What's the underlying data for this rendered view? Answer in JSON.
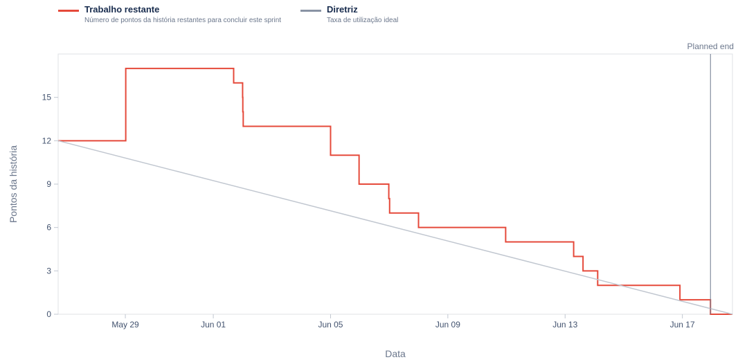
{
  "legend": [
    {
      "name": "Trabalho restante",
      "description": "Número de pontos da história restantes para concluir este sprint",
      "color": "#e5493a"
    },
    {
      "name": "Diretriz",
      "description": "Taxa de utilização ideal",
      "color": "#8993a4"
    }
  ],
  "chart_data": {
    "type": "line",
    "xlabel": "Data",
    "ylabel": "Pontos da história",
    "xlim": [
      "2021-05-26T17:00",
      "2021-06-18T17:00"
    ],
    "ylim": [
      0,
      18
    ],
    "y_ticks": [
      0,
      3,
      6,
      9,
      12,
      15
    ],
    "x_ticks": [
      {
        "date": "2021-05-29T00:00",
        "label": "May 29"
      },
      {
        "date": "2021-06-01T00:00",
        "label": "Jun 01"
      },
      {
        "date": "2021-06-05T00:00",
        "label": "Jun 05"
      },
      {
        "date": "2021-06-09T00:00",
        "label": "Jun 09"
      },
      {
        "date": "2021-06-13T00:00",
        "label": "Jun 13"
      },
      {
        "date": "2021-06-17T00:00",
        "label": "Jun 17"
      }
    ],
    "planned_end": {
      "date": "2021-06-17T23:00",
      "label": "Planned end"
    },
    "series": [
      {
        "name": "Trabalho restante",
        "color": "#e5493a",
        "step": true,
        "points": [
          [
            "2021-05-26T17:00",
            12
          ],
          [
            "2021-05-29T00:20",
            17
          ],
          [
            "2021-06-01T16:40",
            16
          ],
          [
            "2021-06-02T00:00",
            15
          ],
          [
            "2021-06-02T00:10",
            14
          ],
          [
            "2021-06-02T00:30",
            13
          ],
          [
            "2021-06-05T00:00",
            11
          ],
          [
            "2021-06-05T23:20",
            9
          ],
          [
            "2021-06-06T23:40",
            8
          ],
          [
            "2021-06-07T00:20",
            7
          ],
          [
            "2021-06-08T00:00",
            6
          ],
          [
            "2021-06-10T23:20",
            5
          ],
          [
            "2021-06-13T07:00",
            4
          ],
          [
            "2021-06-13T14:40",
            3
          ],
          [
            "2021-06-14T02:40",
            2
          ],
          [
            "2021-06-16T22:00",
            1
          ],
          [
            "2021-06-17T23:00",
            0
          ],
          [
            "2021-06-18T17:00",
            0
          ]
        ]
      },
      {
        "name": "Diretriz",
        "color": "#c1c7d0",
        "step": false,
        "points": [
          [
            "2021-05-26T17:00",
            12
          ],
          [
            "2021-06-18T17:00",
            0
          ]
        ]
      }
    ]
  }
}
